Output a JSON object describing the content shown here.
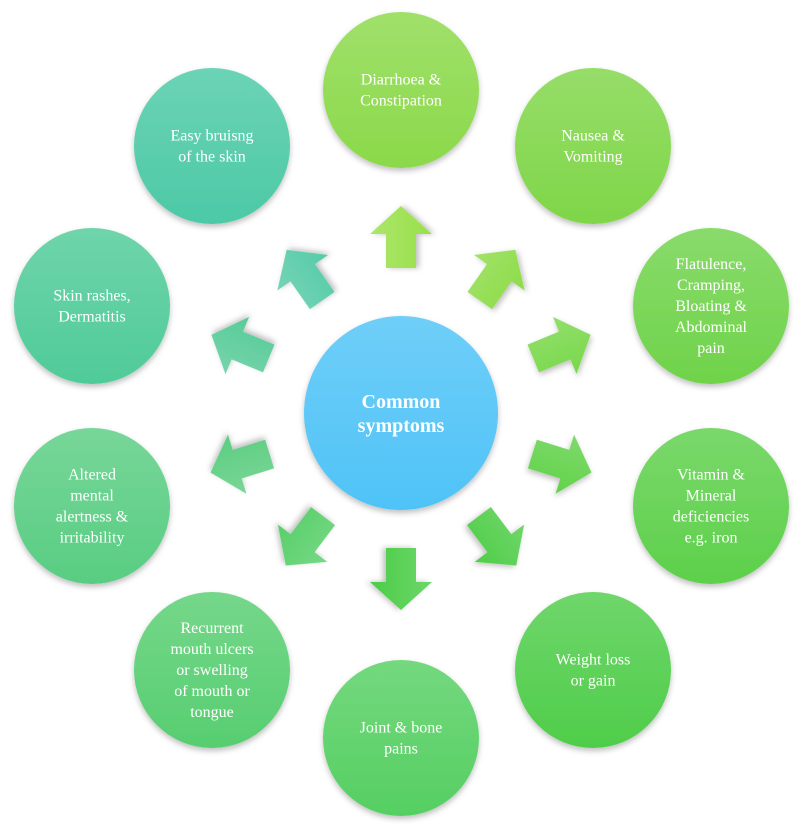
{
  "center": {
    "lines": [
      "Common",
      "symptoms"
    ],
    "color": "#4fc3f7"
  },
  "nodes": [
    {
      "id": "diarrhoea-constipation",
      "lines": [
        "Diarrhoea &",
        "Constipation"
      ],
      "color": "#8bd94a"
    },
    {
      "id": "nausea-vomiting",
      "lines": [
        "Nausea &",
        "Vomiting"
      ],
      "color": "#7fd648"
    },
    {
      "id": "flatulence-cramping",
      "lines": [
        "Flatulence,",
        "Cramping,",
        "Bloating &",
        "Abdominal",
        "pain"
      ],
      "color": "#6fd34a"
    },
    {
      "id": "vitamin-mineral",
      "lines": [
        "Vitamin &",
        "Mineral",
        "deficiencies",
        "e.g. iron"
      ],
      "color": "#5dd04a"
    },
    {
      "id": "weight-loss-gain",
      "lines": [
        "Weight loss",
        "or gain"
      ],
      "color": "#4fcd4a"
    },
    {
      "id": "joint-bone-pains",
      "lines": [
        "Joint & bone",
        "pains"
      ],
      "color": "#55cf62"
    },
    {
      "id": "mouth-ulcers",
      "lines": [
        "Recurrent",
        "mouth ulcers",
        "or swelling",
        "of mouth or",
        "tongue"
      ],
      "color": "#57ce70"
    },
    {
      "id": "mental-alertness",
      "lines": [
        "Altered",
        "mental",
        "alertness &",
        "irritability"
      ],
      "color": "#59cd82"
    },
    {
      "id": "skin-rashes",
      "lines": [
        "Skin rashes,",
        "Dermatitis"
      ],
      "color": "#4fcb98"
    },
    {
      "id": "easy-bruising",
      "lines": [
        "Easy bruisng",
        "of the skin"
      ],
      "color": "#4cc9a6"
    }
  ],
  "arrow_colors": [
    "#99e04a",
    "#8ddc48",
    "#79d84a",
    "#62d24a",
    "#4fcd48",
    "#4ccd48",
    "#58cf6a",
    "#5ccd80",
    "#58cb98",
    "#56cba6"
  ]
}
